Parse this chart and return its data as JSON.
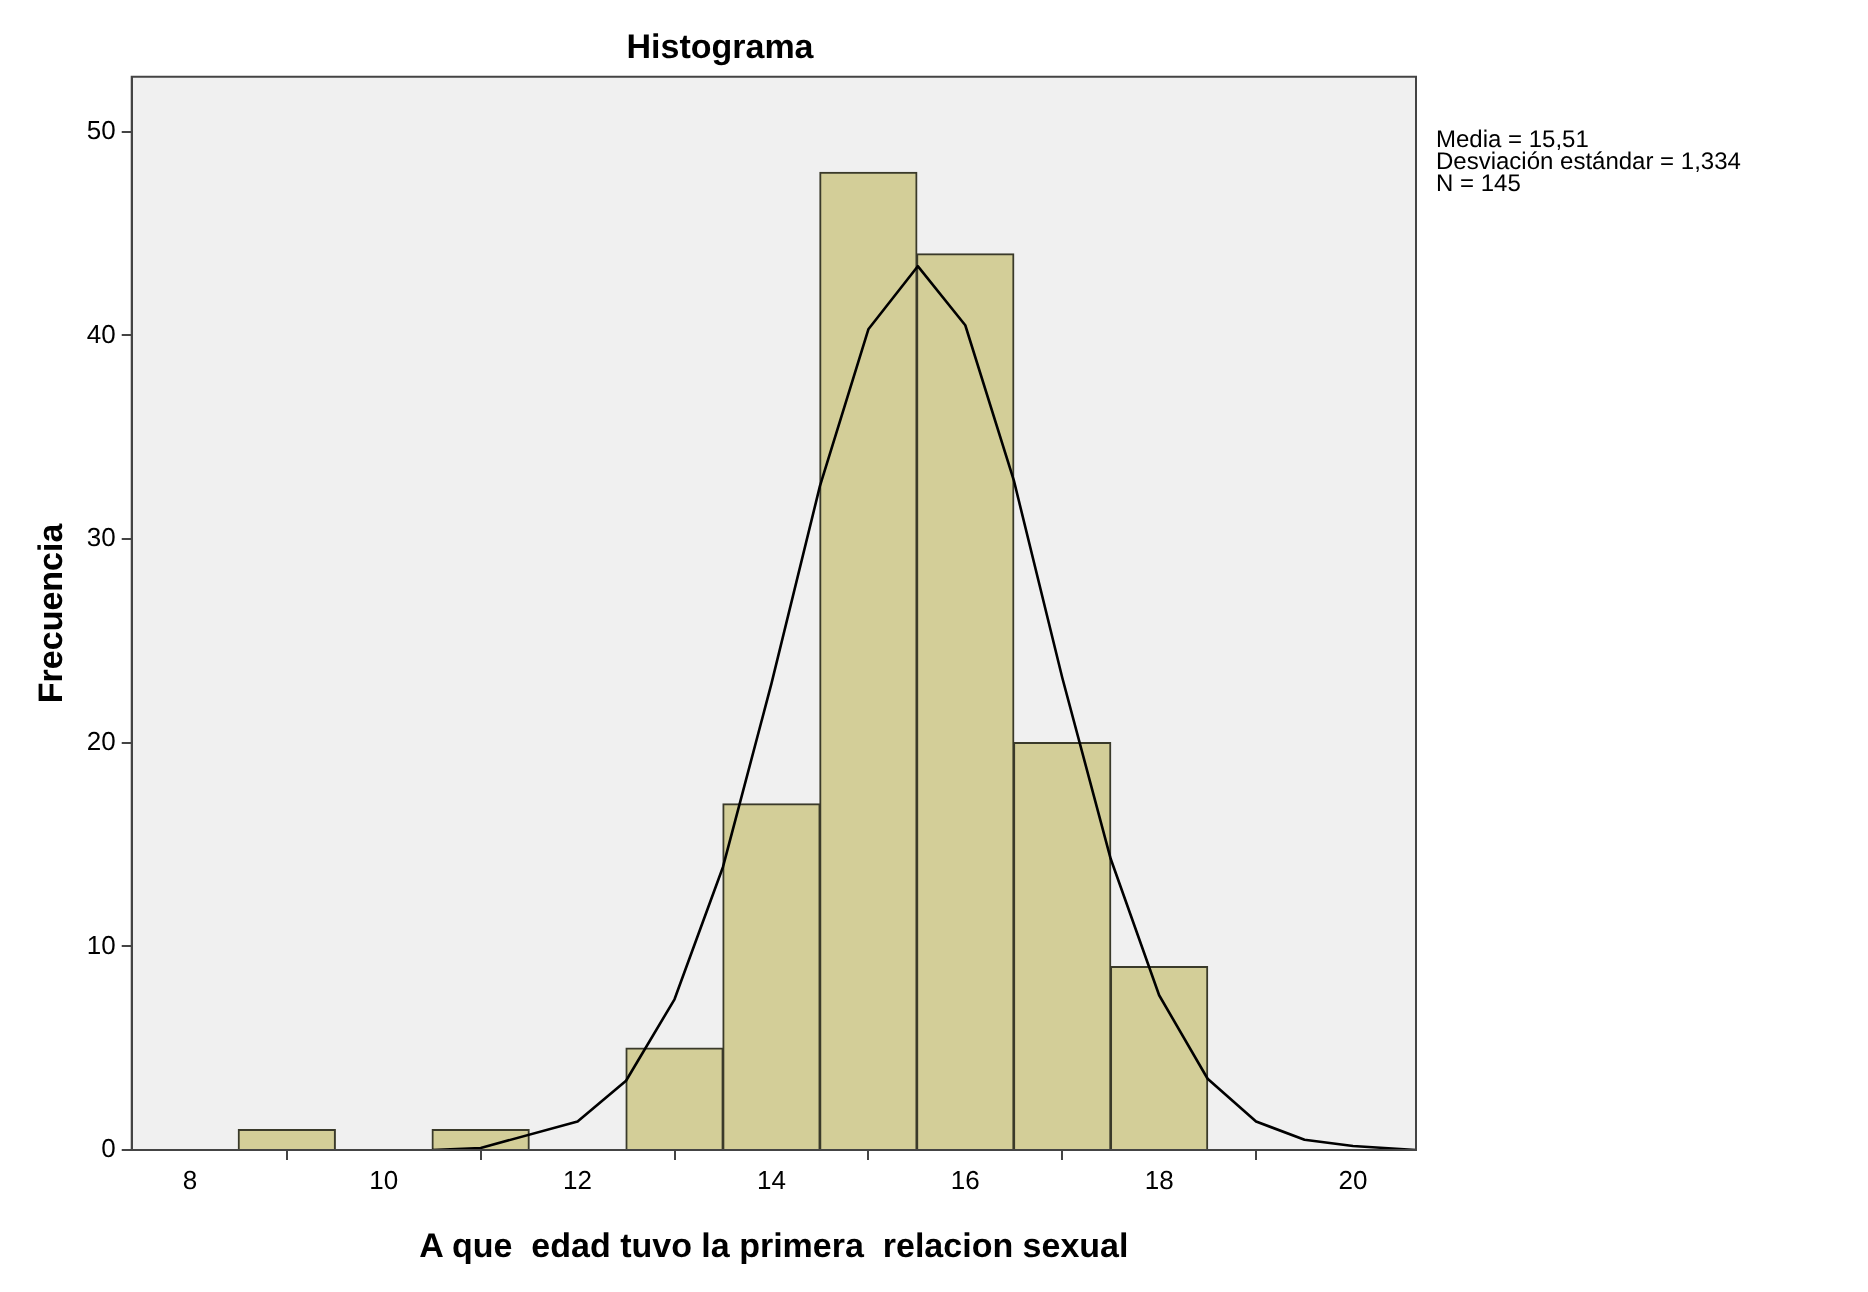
{
  "chart_data": {
    "type": "histogram",
    "title": "Histograma",
    "xlabel": "A que  edad tuvo la primera  relacion sexual",
    "ylabel": "Frecuencia",
    "bins": [
      8.5,
      9.5,
      10.5,
      11.5,
      12.5,
      13.5,
      14.5,
      15.5,
      16.5,
      17.5,
      18.5
    ],
    "values": [
      1,
      0,
      1,
      0,
      5,
      17,
      48,
      44,
      20,
      9
    ],
    "color": "#d3ce98",
    "series": [
      {
        "type": "line",
        "color": "#000000",
        "x": [
          10.5,
          11,
          12,
          12.5,
          13,
          13.5,
          14,
          14.5,
          15,
          15.51,
          16,
          16.5,
          17,
          17.5,
          18,
          18.5,
          19,
          19.5,
          20,
          20.65
        ],
        "values": [
          0,
          0.1,
          1.4,
          3.4,
          7.4,
          13.9,
          22.9,
          32.6,
          40.3,
          43.4,
          40.5,
          32.9,
          23.2,
          14.3,
          7.6,
          3.5,
          1.4,
          0.5,
          0.2,
          0
        ]
      }
    ],
    "xlim": [
      7.4,
      20.65
    ],
    "xticks": [
      8,
      10,
      12,
      14,
      16,
      18,
      20
    ],
    "ylim": [
      0,
      52.7
    ],
    "yticks": [
      0,
      10,
      20,
      30,
      40,
      50
    ],
    "grid": false,
    "legend": false,
    "marker": "none",
    "line_style": "solid",
    "annotations": [
      "Media = 15,51",
      "Desviación estándar = 1,334",
      "N = 145"
    ]
  }
}
